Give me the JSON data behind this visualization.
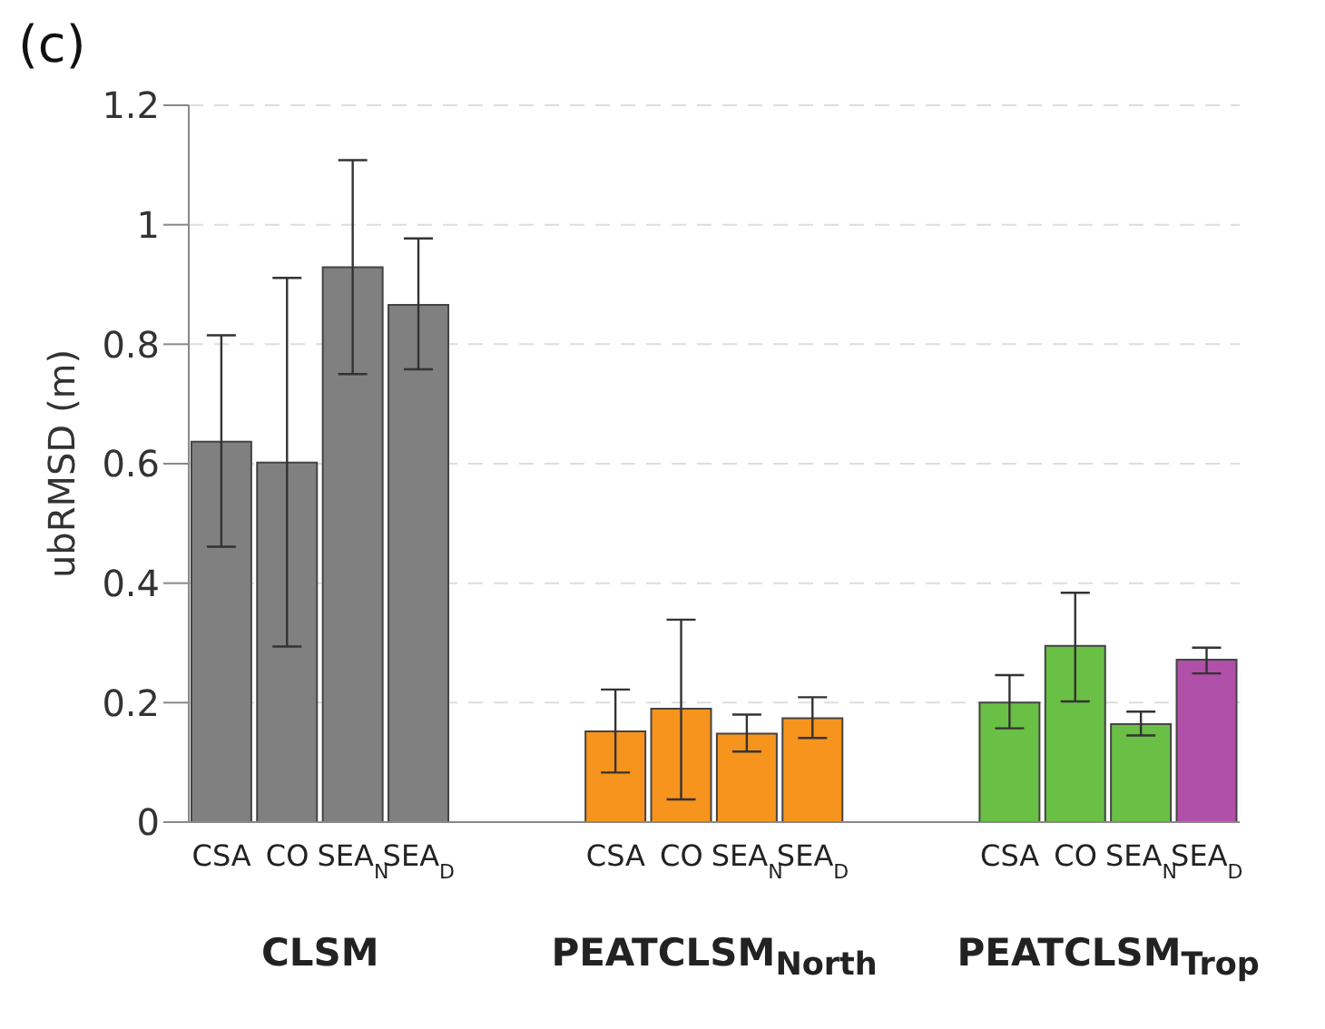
{
  "chart_data": {
    "type": "bar",
    "title": "(c)",
    "ylabel": "ubRMSD (m)",
    "categories": [
      "CSA",
      "CO",
      "SEA$_{N}$",
      "SEA$_{D}$",
      null,
      null,
      "CSA",
      "CO",
      "SEA$_{N}$",
      "SEA$_{D}$",
      null,
      null,
      "CSA",
      "CO",
      "SEA$_{N}$",
      "SEA$_{D}$"
    ],
    "values": [
      0.637,
      0.602,
      0.929,
      0.866,
      null,
      null,
      0.152,
      0.19,
      0.148,
      0.174,
      null,
      null,
      0.2,
      0.295,
      0.164,
      0.272
    ],
    "errors": [
      [
        0.461,
        0.815
      ],
      [
        0.294,
        0.911
      ],
      [
        0.75,
        1.108
      ],
      [
        0.758,
        0.977
      ],
      null,
      null,
      [
        0.083,
        0.222
      ],
      [
        0.038,
        0.339
      ],
      [
        0.118,
        0.18
      ],
      [
        0.141,
        0.209
      ],
      null,
      null,
      [
        0.157,
        0.246
      ],
      [
        0.202,
        0.384
      ],
      [
        0.145,
        0.185
      ],
      [
        0.249,
        0.292
      ]
    ],
    "colors": [
      "#808080",
      "#808080",
      "#808080",
      "#808080",
      null,
      null,
      "#f7941d",
      "#f7941d",
      "#f7941d",
      "#f7941d",
      null,
      null,
      "#6abf45",
      "#6abf45",
      "#6abf45",
      "#b050a8"
    ],
    "ylim": [
      0,
      1.2
    ],
    "yticks": [
      0,
      0.2,
      0.4,
      0.6,
      0.8,
      1,
      1.2
    ],
    "grid": "y",
    "annotations": [
      "CLSM",
      "PEATCLSM$_{North}$",
      "PEATCLSM$_{Trop}$"
    ]
  }
}
